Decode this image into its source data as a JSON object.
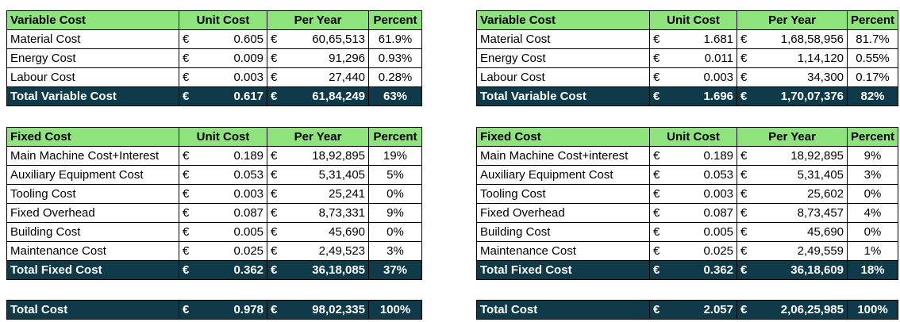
{
  "left": {
    "variable": {
      "headers": [
        "Variable Cost",
        "Unit Cost",
        "Per Year",
        "Percent"
      ],
      "rows": [
        {
          "name": "Material Cost",
          "cur1": "€",
          "unit": "0.605",
          "cur2": "€",
          "year": "60,65,513",
          "pct": "61.9%"
        },
        {
          "name": "Energy Cost",
          "cur1": "€",
          "unit": "0.009",
          "cur2": "€",
          "year": "91,296",
          "pct": "0.93%"
        },
        {
          "name": "Labour Cost",
          "cur1": "€",
          "unit": "0.003",
          "cur2": "€",
          "year": "27,440",
          "pct": "0.28%"
        }
      ],
      "total": {
        "name": "Total Variable Cost",
        "cur1": "€",
        "unit": "0.617",
        "cur2": "€",
        "year": "61,84,249",
        "pct": "63%"
      }
    },
    "fixed": {
      "headers": [
        "Fixed Cost",
        "Unit Cost",
        "Per Year",
        "Percent"
      ],
      "rows": [
        {
          "name": "Main Machine Cost+Interest",
          "cur1": "€",
          "unit": "0.189",
          "cur2": "€",
          "year": "18,92,895",
          "pct": "19%"
        },
        {
          "name": "Auxiliary Equipment Cost",
          "cur1": "€",
          "unit": "0.053",
          "cur2": "€",
          "year": "5,31,405",
          "pct": "5%"
        },
        {
          "name": "Tooling Cost",
          "cur1": "€",
          "unit": "0.003",
          "cur2": "€",
          "year": "25,241",
          "pct": "0%"
        },
        {
          "name": "Fixed Overhead",
          "cur1": "€",
          "unit": "0.087",
          "cur2": "€",
          "year": "8,73,331",
          "pct": "9%"
        },
        {
          "name": "Building Cost",
          "cur1": "€",
          "unit": "0.005",
          "cur2": "€",
          "year": "45,690",
          "pct": "0%"
        },
        {
          "name": "Maintenance Cost",
          "cur1": "€",
          "unit": "0.025",
          "cur2": "€",
          "year": "2,49,523",
          "pct": "3%"
        }
      ],
      "total": {
        "name": "Total Fixed Cost",
        "cur1": "€",
        "unit": "0.362",
        "cur2": "€",
        "year": "36,18,085",
        "pct": "37%"
      }
    },
    "grand": {
      "name": "Total Cost",
      "cur1": "€",
      "unit": "0.978",
      "cur2": "€",
      "year": "98,02,335",
      "pct": "100%"
    }
  },
  "right": {
    "variable": {
      "headers": [
        "Variable Cost",
        "Unit Cost",
        "Per Year",
        "Percent"
      ],
      "rows": [
        {
          "name": "Material Cost",
          "cur1": "€",
          "unit": "1.681",
          "cur2": "€",
          "year": "1,68,58,956",
          "pct": "81.7%"
        },
        {
          "name": "Energy Cost",
          "cur1": "€",
          "unit": "0.011",
          "cur2": "€",
          "year": "1,14,120",
          "pct": "0.55%"
        },
        {
          "name": "Labour Cost",
          "cur1": "€",
          "unit": "0.003",
          "cur2": "€",
          "year": "34,300",
          "pct": "0.17%"
        }
      ],
      "total": {
        "name": "Total Variable Cost",
        "cur1": "€",
        "unit": "1.696",
        "cur2": "€",
        "year": "1,70,07,376",
        "pct": "82%"
      }
    },
    "fixed": {
      "headers": [
        "Fixed Cost",
        "Unit Cost",
        "Per Year",
        "Percent"
      ],
      "rows": [
        {
          "name": "Main Machine Cost+interest",
          "cur1": "€",
          "unit": "0.189",
          "cur2": "€",
          "year": "18,92,895",
          "pct": "9%"
        },
        {
          "name": "Auxiliary Equipment Cost",
          "cur1": "€",
          "unit": "0.053",
          "cur2": "€",
          "year": "5,31,405",
          "pct": "3%"
        },
        {
          "name": "Tooling Cost",
          "cur1": "€",
          "unit": "0.003",
          "cur2": "€",
          "year": "25,602",
          "pct": "0%"
        },
        {
          "name": "Fixed Overhead",
          "cur1": "€",
          "unit": "0.087",
          "cur2": "€",
          "year": "8,73,457",
          "pct": "4%"
        },
        {
          "name": "Building Cost",
          "cur1": "€",
          "unit": "0.005",
          "cur2": "€",
          "year": "45,690",
          "pct": "0%"
        },
        {
          "name": "Maintenance Cost",
          "cur1": "€",
          "unit": "0.025",
          "cur2": "€",
          "year": "2,49,559",
          "pct": "1%"
        }
      ],
      "total": {
        "name": "Total Fixed Cost",
        "cur1": "€",
        "unit": "0.362",
        "cur2": "€",
        "year": "36,18,609",
        "pct": "18%"
      }
    },
    "grand": {
      "name": "Total Cost",
      "cur1": "€",
      "unit": "2.057",
      "cur2": "€",
      "year": "2,06,25,985",
      "pct": "100%"
    }
  }
}
